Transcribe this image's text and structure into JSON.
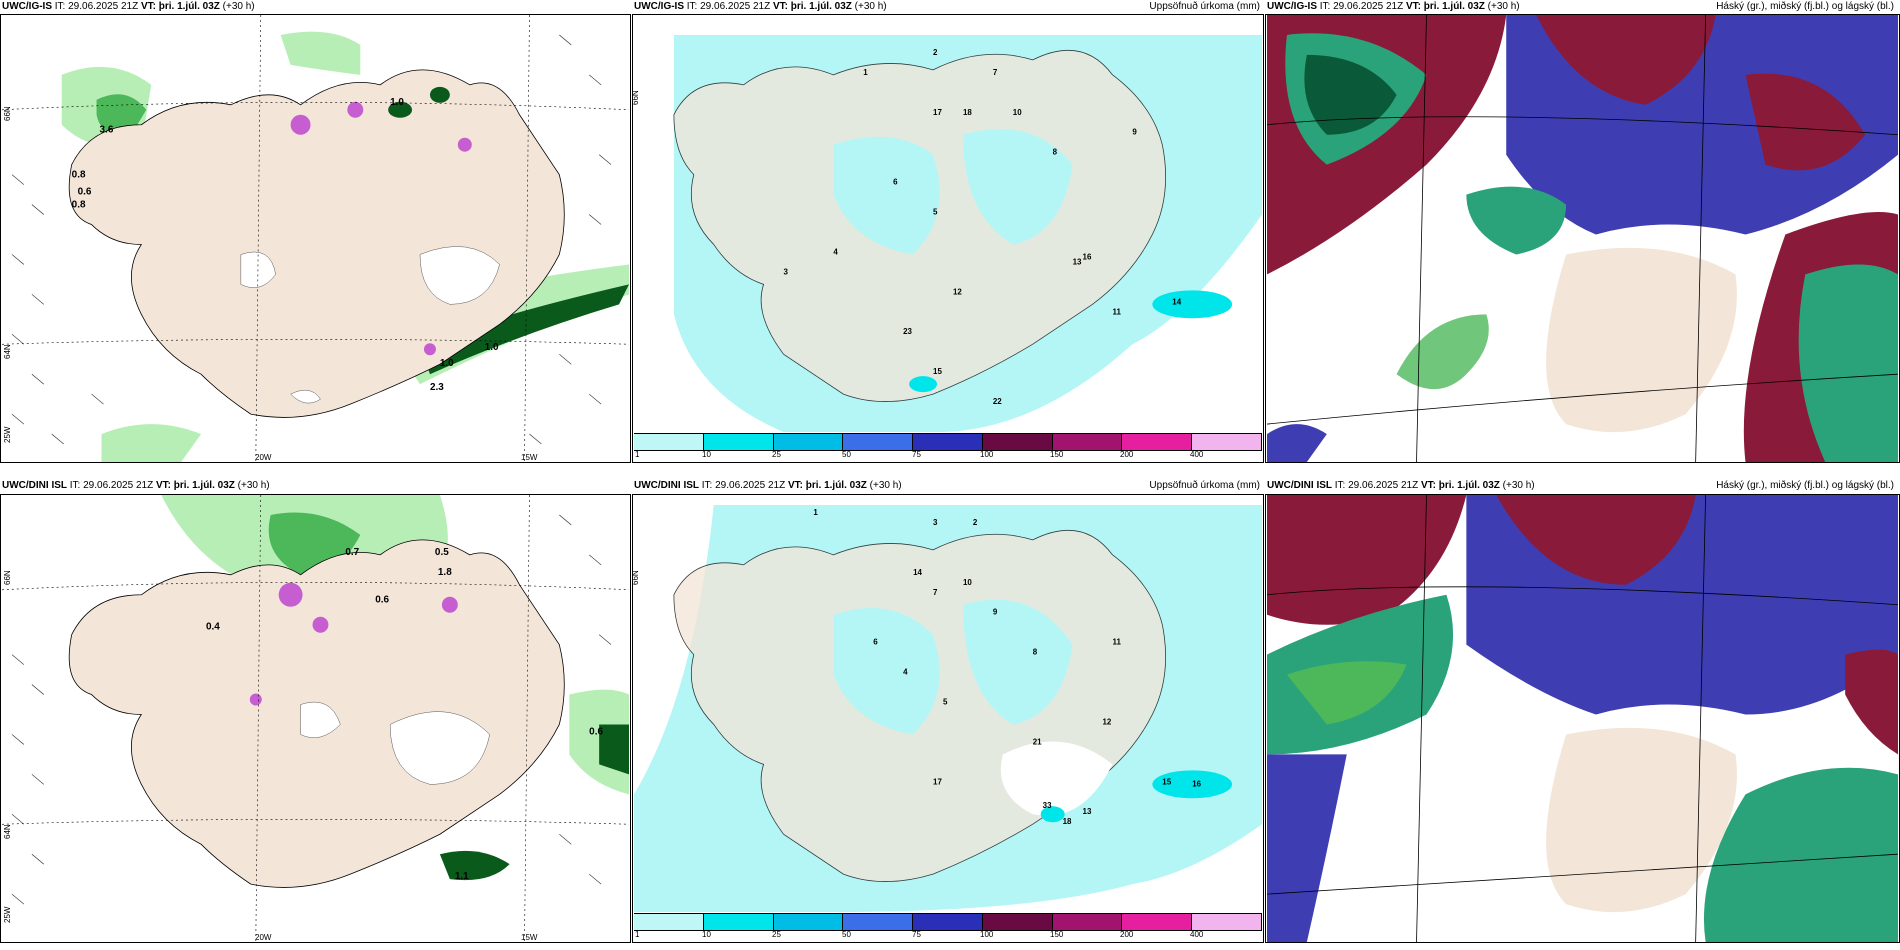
{
  "rows": [
    {
      "model": "UWC/IG-IS",
      "it_label": "IT:",
      "it_value": "29.06.2025 21Z",
      "vt_label": "VT:",
      "vt_value": "þri. 1.júl. 03Z",
      "lead": "(+30 h)"
    },
    {
      "model": "UWC/DINI ISL",
      "it_label": "IT:",
      "it_value": "29.06.2025 21Z",
      "vt_label": "VT:",
      "vt_value": "þri. 1.júl. 03Z",
      "lead": "(+30 h)"
    }
  ],
  "precip_title": "Uppsöfnuð úrkoma (mm)",
  "cloud_title": "Háský (gr.), miðský (fj.bl.) og lágský (bl.)",
  "axis_labels": {
    "lon_20": "20W",
    "lon_15": "15W",
    "lon_25": "25W",
    "lat_66": "66N",
    "lat_64": "64N",
    "lat_65": "65N"
  },
  "colorbar": {
    "labels": [
      "1",
      "10",
      "25",
      "50",
      "75",
      "100",
      "150",
      "200",
      "400"
    ],
    "colors": [
      "#bff7f7",
      "#00e5ea",
      "#00bde6",
      "#3a6fe8",
      "#2a2fb8",
      "#6a0a42",
      "#a0146e",
      "#e61ea0",
      "#f2b4ee"
    ]
  },
  "top_left_values": [
    "3.6",
    "0.8",
    "0.6",
    "0.8",
    "1.0",
    "1.0",
    "1.0",
    "2.3"
  ],
  "bottom_left_values": [
    "0.7",
    "0.5",
    "1.8",
    "0.6",
    "0.4",
    "0.6",
    "1.1"
  ],
  "top_precip_numbers": [
    "2",
    "1",
    "7",
    "17",
    "18",
    "10",
    "8",
    "6",
    "5",
    "4",
    "3",
    "12",
    "13",
    "15",
    "22",
    "23",
    "16",
    "9",
    "11",
    "14"
  ],
  "bottom_precip_numbers": [
    "1",
    "3",
    "2",
    "14",
    "7",
    "10",
    "6",
    "4",
    "5",
    "9",
    "8",
    "17",
    "21",
    "12",
    "15",
    "16",
    "11",
    "13",
    "18",
    "33"
  ],
  "map_colors": {
    "land": "#f3e5d8",
    "sea": "#ffffff",
    "precip_light": "#b4f6f6",
    "green_light": "#b7eeb6",
    "green_mid": "#4cb85a",
    "green_dark": "#0a5a1c",
    "purple": "#c65dd1",
    "high_cloud": "#8a1a3a",
    "mid_cloud": "#3e3eb2",
    "low_cloud": "#2aa37a"
  }
}
